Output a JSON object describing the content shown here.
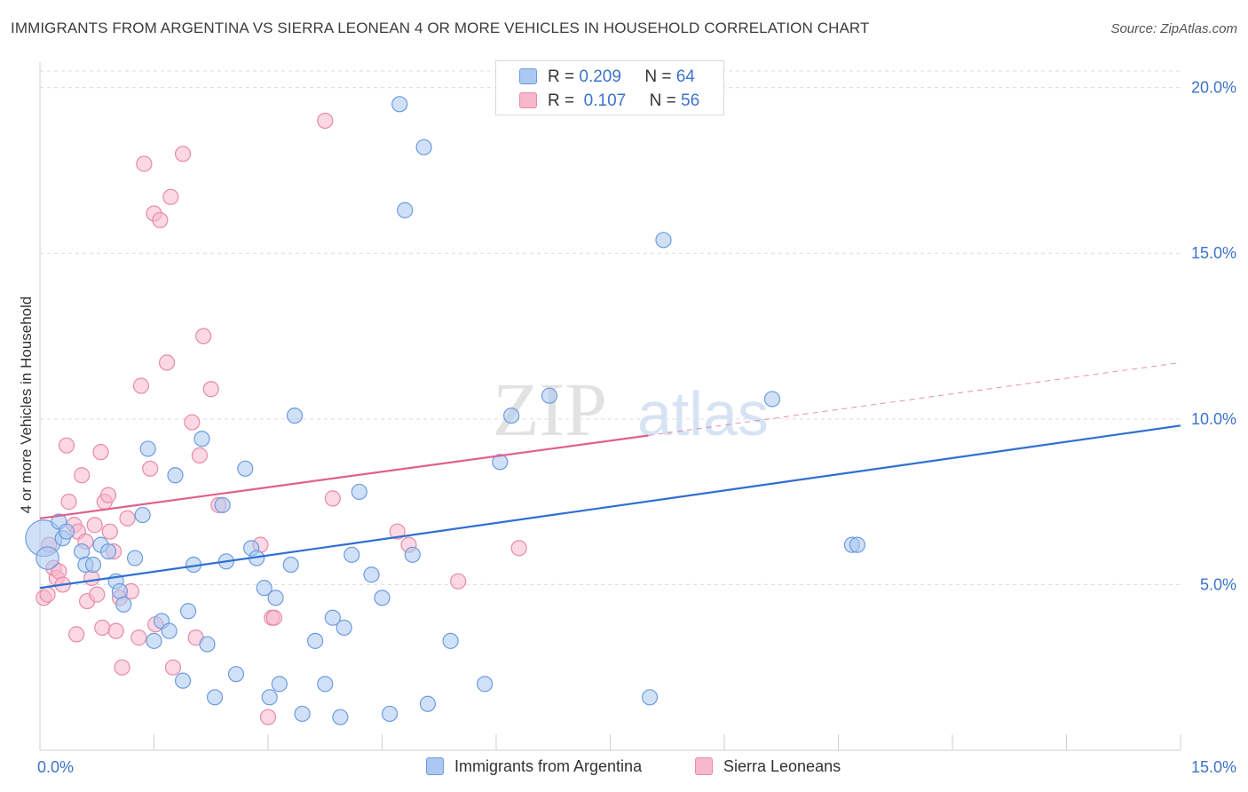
{
  "title": "IMMIGRANTS FROM ARGENTINA VS SIERRA LEONEAN 4 OR MORE VEHICLES IN HOUSEHOLD CORRELATION CHART",
  "source": "Source: ZipAtlas.com",
  "watermark": {
    "zip": "ZIP",
    "atlas": "atlas"
  },
  "legend_top": {
    "rows": [
      {
        "r_label": "R =",
        "r_value": "0.209",
        "n_label": "N =",
        "n_value": "64"
      },
      {
        "r_label": "R =",
        "r_value": "0.107",
        "n_label": "N =",
        "n_value": "56"
      }
    ]
  },
  "colors": {
    "blue_fill": "#aac8f0",
    "blue_stroke": "#6d9be0",
    "blue_line": "#2f6fd1",
    "pink_fill": "#f7b8cc",
    "pink_stroke": "#e88aa8",
    "pink_line": "#e0608e",
    "grid": "#dcdcdc",
    "tick_label": "#3b73c8"
  },
  "chart_data": {
    "type": "scatter",
    "xlabel": "",
    "ylabel": "4 or more Vehicles in Household",
    "xlim": [
      0,
      15
    ],
    "ylim": [
      0,
      20.5
    ],
    "x_tick_labels": [
      {
        "value": 0,
        "label": "0.0%"
      },
      {
        "value": 15,
        "label": "15.0%"
      }
    ],
    "x_minor_ticks": [
      1.5,
      3.0,
      4.5,
      6.0,
      7.5,
      9.0,
      10.5,
      12.0,
      13.5,
      15.0
    ],
    "y_ticks": [
      {
        "value": 5,
        "label": "5.0%"
      },
      {
        "value": 10,
        "label": "10.0%"
      },
      {
        "value": 15,
        "label": "15.0%"
      },
      {
        "value": 20,
        "label": "20.0%"
      }
    ],
    "grid": true,
    "legend_position": "bottom",
    "series": [
      {
        "name": "Immigrants from Argentina",
        "color": "blue",
        "points": [
          [
            0.05,
            6.4,
            24
          ],
          [
            0.1,
            5.8,
            15
          ],
          [
            0.25,
            6.9,
            10
          ],
          [
            0.3,
            6.4,
            10
          ],
          [
            0.35,
            6.6,
            10
          ],
          [
            0.55,
            6.0,
            10
          ],
          [
            0.6,
            5.6,
            10
          ],
          [
            0.7,
            5.6,
            10
          ],
          [
            0.8,
            6.2,
            10
          ],
          [
            0.9,
            6.0,
            10
          ],
          [
            1.0,
            5.1,
            10
          ],
          [
            1.05,
            4.8,
            10
          ],
          [
            1.1,
            4.4,
            10
          ],
          [
            1.25,
            5.8,
            10
          ],
          [
            1.35,
            7.1,
            10
          ],
          [
            1.42,
            9.1,
            10
          ],
          [
            1.5,
            3.3,
            10
          ],
          [
            1.6,
            3.9,
            10
          ],
          [
            1.7,
            3.6,
            10
          ],
          [
            1.78,
            8.3,
            10
          ],
          [
            1.88,
            2.1,
            10
          ],
          [
            1.95,
            4.2,
            10
          ],
          [
            2.02,
            5.6,
            10
          ],
          [
            2.13,
            9.4,
            10
          ],
          [
            2.2,
            3.2,
            10
          ],
          [
            2.3,
            1.6,
            10
          ],
          [
            2.4,
            7.4,
            10
          ],
          [
            2.45,
            5.7,
            10
          ],
          [
            2.58,
            2.3,
            10
          ],
          [
            2.7,
            8.5,
            10
          ],
          [
            2.78,
            6.1,
            10
          ],
          [
            2.85,
            5.8,
            10
          ],
          [
            2.95,
            4.9,
            10
          ],
          [
            3.02,
            1.6,
            10
          ],
          [
            3.1,
            4.6,
            10
          ],
          [
            3.15,
            2.0,
            10
          ],
          [
            3.3,
            5.6,
            10
          ],
          [
            3.35,
            10.1,
            10
          ],
          [
            3.45,
            1.1,
            10
          ],
          [
            3.62,
            3.3,
            10
          ],
          [
            3.75,
            2.0,
            10
          ],
          [
            3.85,
            4.0,
            10
          ],
          [
            3.95,
            1.0,
            10
          ],
          [
            4.0,
            3.7,
            10
          ],
          [
            4.1,
            5.9,
            10
          ],
          [
            4.2,
            7.8,
            10
          ],
          [
            4.36,
            5.3,
            10
          ],
          [
            4.5,
            4.6,
            10
          ],
          [
            4.6,
            1.1,
            10
          ],
          [
            4.73,
            19.5,
            10
          ],
          [
            4.8,
            16.3,
            10
          ],
          [
            4.9,
            5.9,
            10
          ],
          [
            5.05,
            18.2,
            10
          ],
          [
            5.1,
            1.4,
            10
          ],
          [
            5.4,
            3.3,
            10
          ],
          [
            5.85,
            2.0,
            10
          ],
          [
            6.05,
            8.7,
            10
          ],
          [
            6.2,
            10.1,
            10
          ],
          [
            6.7,
            10.7,
            10
          ],
          [
            8.02,
            1.6,
            10
          ],
          [
            8.2,
            15.4,
            10
          ],
          [
            9.63,
            10.6,
            10
          ],
          [
            10.68,
            6.2,
            10
          ],
          [
            10.75,
            6.2,
            10
          ]
        ],
        "trendline": {
          "x0": 0,
          "y0": 4.9,
          "x1": 15,
          "y1": 9.8,
          "style": "solid"
        }
      },
      {
        "name": "Sierra Leoneans",
        "color": "pink",
        "points": [
          [
            0.05,
            4.6,
            10
          ],
          [
            0.1,
            4.7,
            10
          ],
          [
            0.12,
            6.2,
            10
          ],
          [
            0.18,
            5.5,
            10
          ],
          [
            0.22,
            5.2,
            10
          ],
          [
            0.25,
            5.4,
            10
          ],
          [
            0.3,
            5.0,
            10
          ],
          [
            0.35,
            9.2,
            10
          ],
          [
            0.38,
            7.5,
            10
          ],
          [
            0.45,
            6.8,
            10
          ],
          [
            0.5,
            6.6,
            10
          ],
          [
            0.48,
            3.5,
            10
          ],
          [
            0.55,
            8.3,
            10
          ],
          [
            0.6,
            6.3,
            10
          ],
          [
            0.62,
            4.5,
            10
          ],
          [
            0.68,
            5.2,
            10
          ],
          [
            0.72,
            6.8,
            10
          ],
          [
            0.75,
            4.7,
            10
          ],
          [
            0.8,
            9.0,
            10
          ],
          [
            0.82,
            3.7,
            10
          ],
          [
            0.85,
            7.5,
            10
          ],
          [
            0.9,
            7.7,
            10
          ],
          [
            0.92,
            6.6,
            10
          ],
          [
            0.97,
            6.0,
            10
          ],
          [
            1.0,
            3.6,
            10
          ],
          [
            1.05,
            4.6,
            10
          ],
          [
            1.08,
            2.5,
            10
          ],
          [
            1.15,
            7.0,
            10
          ],
          [
            1.2,
            4.8,
            10
          ],
          [
            1.3,
            3.4,
            10
          ],
          [
            1.33,
            11.0,
            10
          ],
          [
            1.37,
            17.7,
            10
          ],
          [
            1.45,
            8.5,
            10
          ],
          [
            1.5,
            16.2,
            10
          ],
          [
            1.52,
            3.8,
            10
          ],
          [
            1.58,
            16.0,
            10
          ],
          [
            1.67,
            11.7,
            10
          ],
          [
            1.72,
            16.7,
            10
          ],
          [
            1.75,
            2.5,
            10
          ],
          [
            1.88,
            18.0,
            10
          ],
          [
            2.0,
            9.9,
            10
          ],
          [
            2.05,
            3.4,
            10
          ],
          [
            2.1,
            8.9,
            10
          ],
          [
            2.15,
            12.5,
            10
          ],
          [
            2.25,
            10.9,
            10
          ],
          [
            2.35,
            7.4,
            10
          ],
          [
            2.9,
            6.2,
            10
          ],
          [
            3.0,
            1.0,
            10
          ],
          [
            3.05,
            4.0,
            10
          ],
          [
            3.08,
            4.0,
            10
          ],
          [
            3.75,
            19.0,
            10
          ],
          [
            3.85,
            7.6,
            10
          ],
          [
            4.7,
            6.6,
            10
          ],
          [
            4.85,
            6.2,
            10
          ],
          [
            5.5,
            5.1,
            10
          ],
          [
            6.3,
            6.1,
            10
          ]
        ],
        "trendline": {
          "x0": 0,
          "y0": 7.0,
          "x1": 8.0,
          "y1": 9.5,
          "style": "solid",
          "extension": {
            "x0": 8.0,
            "y0": 9.5,
            "x1": 15,
            "y1": 11.7,
            "style": "dashed"
          }
        }
      }
    ]
  }
}
